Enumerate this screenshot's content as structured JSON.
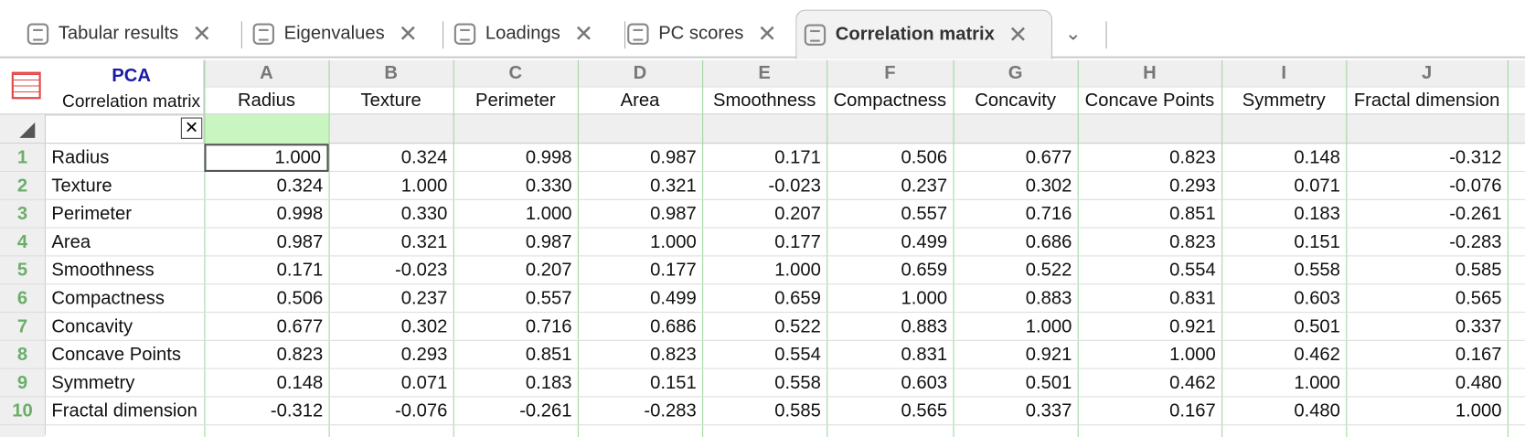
{
  "tabs": [
    "Tabular results",
    "Eigenvalues",
    "Loadings",
    "PC scores",
    "Correlation matrix"
  ],
  "table": {
    "corner_title": "PCA",
    "corner_subtitle": "Correlation matrix",
    "column_letters": [
      "A",
      "B",
      "C",
      "D",
      "E",
      "F",
      "G",
      "H",
      "I",
      "J"
    ],
    "column_headers": [
      "Radius",
      "Texture",
      "Perimeter",
      "Area",
      "Smoothness",
      "Compactness",
      "Concavity",
      "Concave Points",
      "Symmetry",
      "Fractal dimension"
    ],
    "row_numbers": [
      1,
      2,
      3,
      4,
      5,
      6,
      7,
      8,
      9,
      10
    ],
    "rows": [
      {
        "label": "Radius",
        "values": [
          "1.000",
          "0.324",
          "0.998",
          "0.987",
          "0.171",
          "0.506",
          "0.677",
          "0.823",
          "0.148",
          "-0.312"
        ]
      },
      {
        "label": "Texture",
        "values": [
          "0.324",
          "1.000",
          "0.330",
          "0.321",
          "-0.023",
          "0.237",
          "0.302",
          "0.293",
          "0.071",
          "-0.076"
        ]
      },
      {
        "label": "Perimeter",
        "values": [
          "0.998",
          "0.330",
          "1.000",
          "0.987",
          "0.207",
          "0.557",
          "0.716",
          "0.851",
          "0.183",
          "-0.261"
        ]
      },
      {
        "label": "Area",
        "values": [
          "0.987",
          "0.321",
          "0.987",
          "1.000",
          "0.177",
          "0.499",
          "0.686",
          "0.823",
          "0.151",
          "-0.283"
        ]
      },
      {
        "label": "Smoothness",
        "values": [
          "0.171",
          "-0.023",
          "0.207",
          "0.177",
          "1.000",
          "0.659",
          "0.522",
          "0.554",
          "0.558",
          "0.585"
        ]
      },
      {
        "label": "Compactness",
        "values": [
          "0.506",
          "0.237",
          "0.557",
          "0.499",
          "0.659",
          "1.000",
          "0.883",
          "0.831",
          "0.603",
          "0.565"
        ]
      },
      {
        "label": "Concavity",
        "values": [
          "0.677",
          "0.302",
          "0.716",
          "0.686",
          "0.522",
          "0.883",
          "1.000",
          "0.921",
          "0.501",
          "0.337"
        ]
      },
      {
        "label": "Concave Points",
        "values": [
          "0.823",
          "0.293",
          "0.851",
          "0.823",
          "0.554",
          "0.831",
          "0.921",
          "1.000",
          "0.462",
          "0.167"
        ]
      },
      {
        "label": "Symmetry",
        "values": [
          "0.148",
          "0.071",
          "0.183",
          "0.151",
          "0.558",
          "0.603",
          "0.501",
          "0.462",
          "1.000",
          "0.480"
        ]
      },
      {
        "label": "Fractal dimension",
        "values": [
          "-0.312",
          "-0.076",
          "-0.261",
          "-0.283",
          "0.585",
          "0.565",
          "0.337",
          "0.167",
          "0.480",
          "1.000"
        ]
      }
    ]
  }
}
